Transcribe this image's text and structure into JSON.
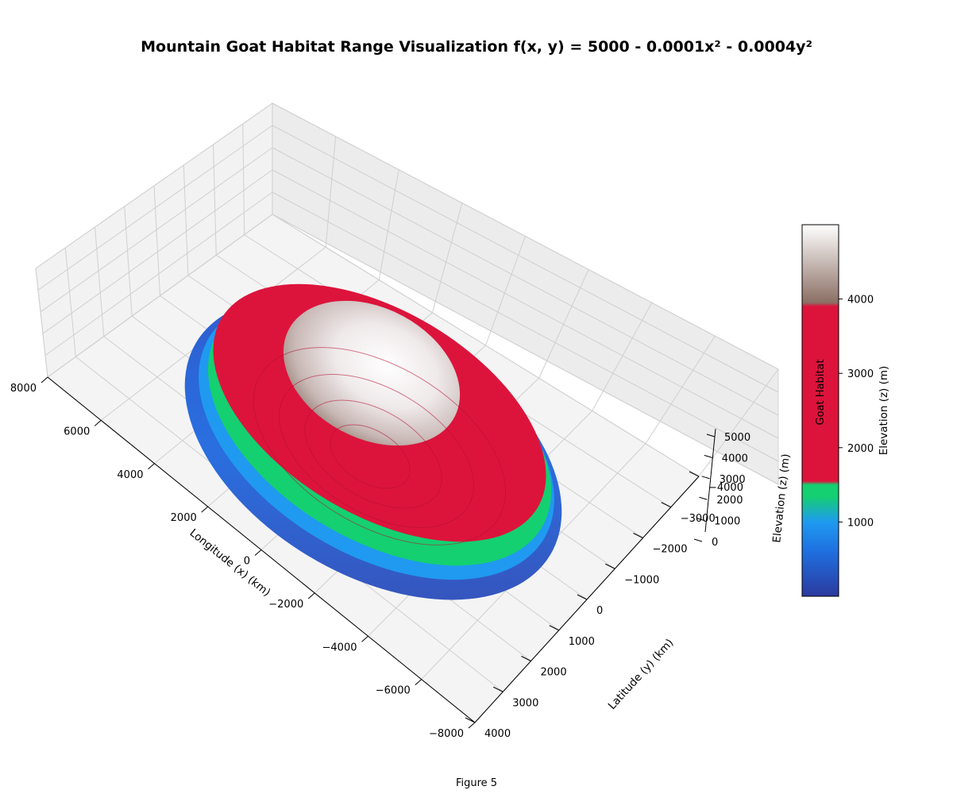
{
  "figure_label": "Figure 5",
  "chart_data": {
    "type": "surface",
    "title": "Mountain Goat Habitat Range Visualization f(x, y) = 5000 - 0.0001x² - 0.0004y²",
    "function": "z = 5000 - 0.0001*x^2 - 0.0004*y^2",
    "coefficients": {
      "c": 5000,
      "a": 0.0001,
      "b": 0.0004
    },
    "xlabel": "Longitude (x) (km)",
    "ylabel": "Latitude (y) (km)",
    "zlabel": "Elevation (z) (m)",
    "xlim": [
      -8000,
      8000
    ],
    "ylim": [
      -4000,
      4000
    ],
    "zlim": [
      0,
      5000
    ],
    "x_ticks": [
      "8000",
      "6000",
      "4000",
      "2000",
      "0",
      "−2000",
      "−4000",
      "−6000",
      "−8000"
    ],
    "x_tick_values": [
      8000,
      6000,
      4000,
      2000,
      0,
      -2000,
      -4000,
      -6000,
      -8000
    ],
    "y_ticks": [
      "−4000",
      "−3000",
      "−2000",
      "−1000",
      "0",
      "1000",
      "2000",
      "3000",
      "4000"
    ],
    "y_tick_values": [
      -4000,
      -3000,
      -2000,
      -1000,
      0,
      1000,
      2000,
      3000,
      4000
    ],
    "z_ticks": [
      "0",
      "1000",
      "2000",
      "3000",
      "4000",
      "5000"
    ],
    "z_tick_values": [
      0,
      1000,
      2000,
      3000,
      4000,
      5000
    ],
    "color_bands": [
      {
        "from": 0,
        "to": 1500,
        "colors": [
          "#2b3a9e",
          "#1f8ff0",
          "#14d070"
        ]
      },
      {
        "from": 1500,
        "to": 3900,
        "label": "Goat Habitat",
        "color": "#dc143c"
      },
      {
        "from": 3900,
        "to": 5000,
        "colors": [
          "#8b6f64",
          "#ffffff"
        ]
      }
    ],
    "colorbar": {
      "label": "Elevation (z) (m)",
      "band_label": "Goat Habitat",
      "ticks": [
        "1000",
        "2000",
        "3000",
        "4000"
      ],
      "tick_values": [
        1000,
        2000,
        3000,
        4000
      ],
      "range": [
        0,
        5000
      ]
    },
    "grid": true
  }
}
